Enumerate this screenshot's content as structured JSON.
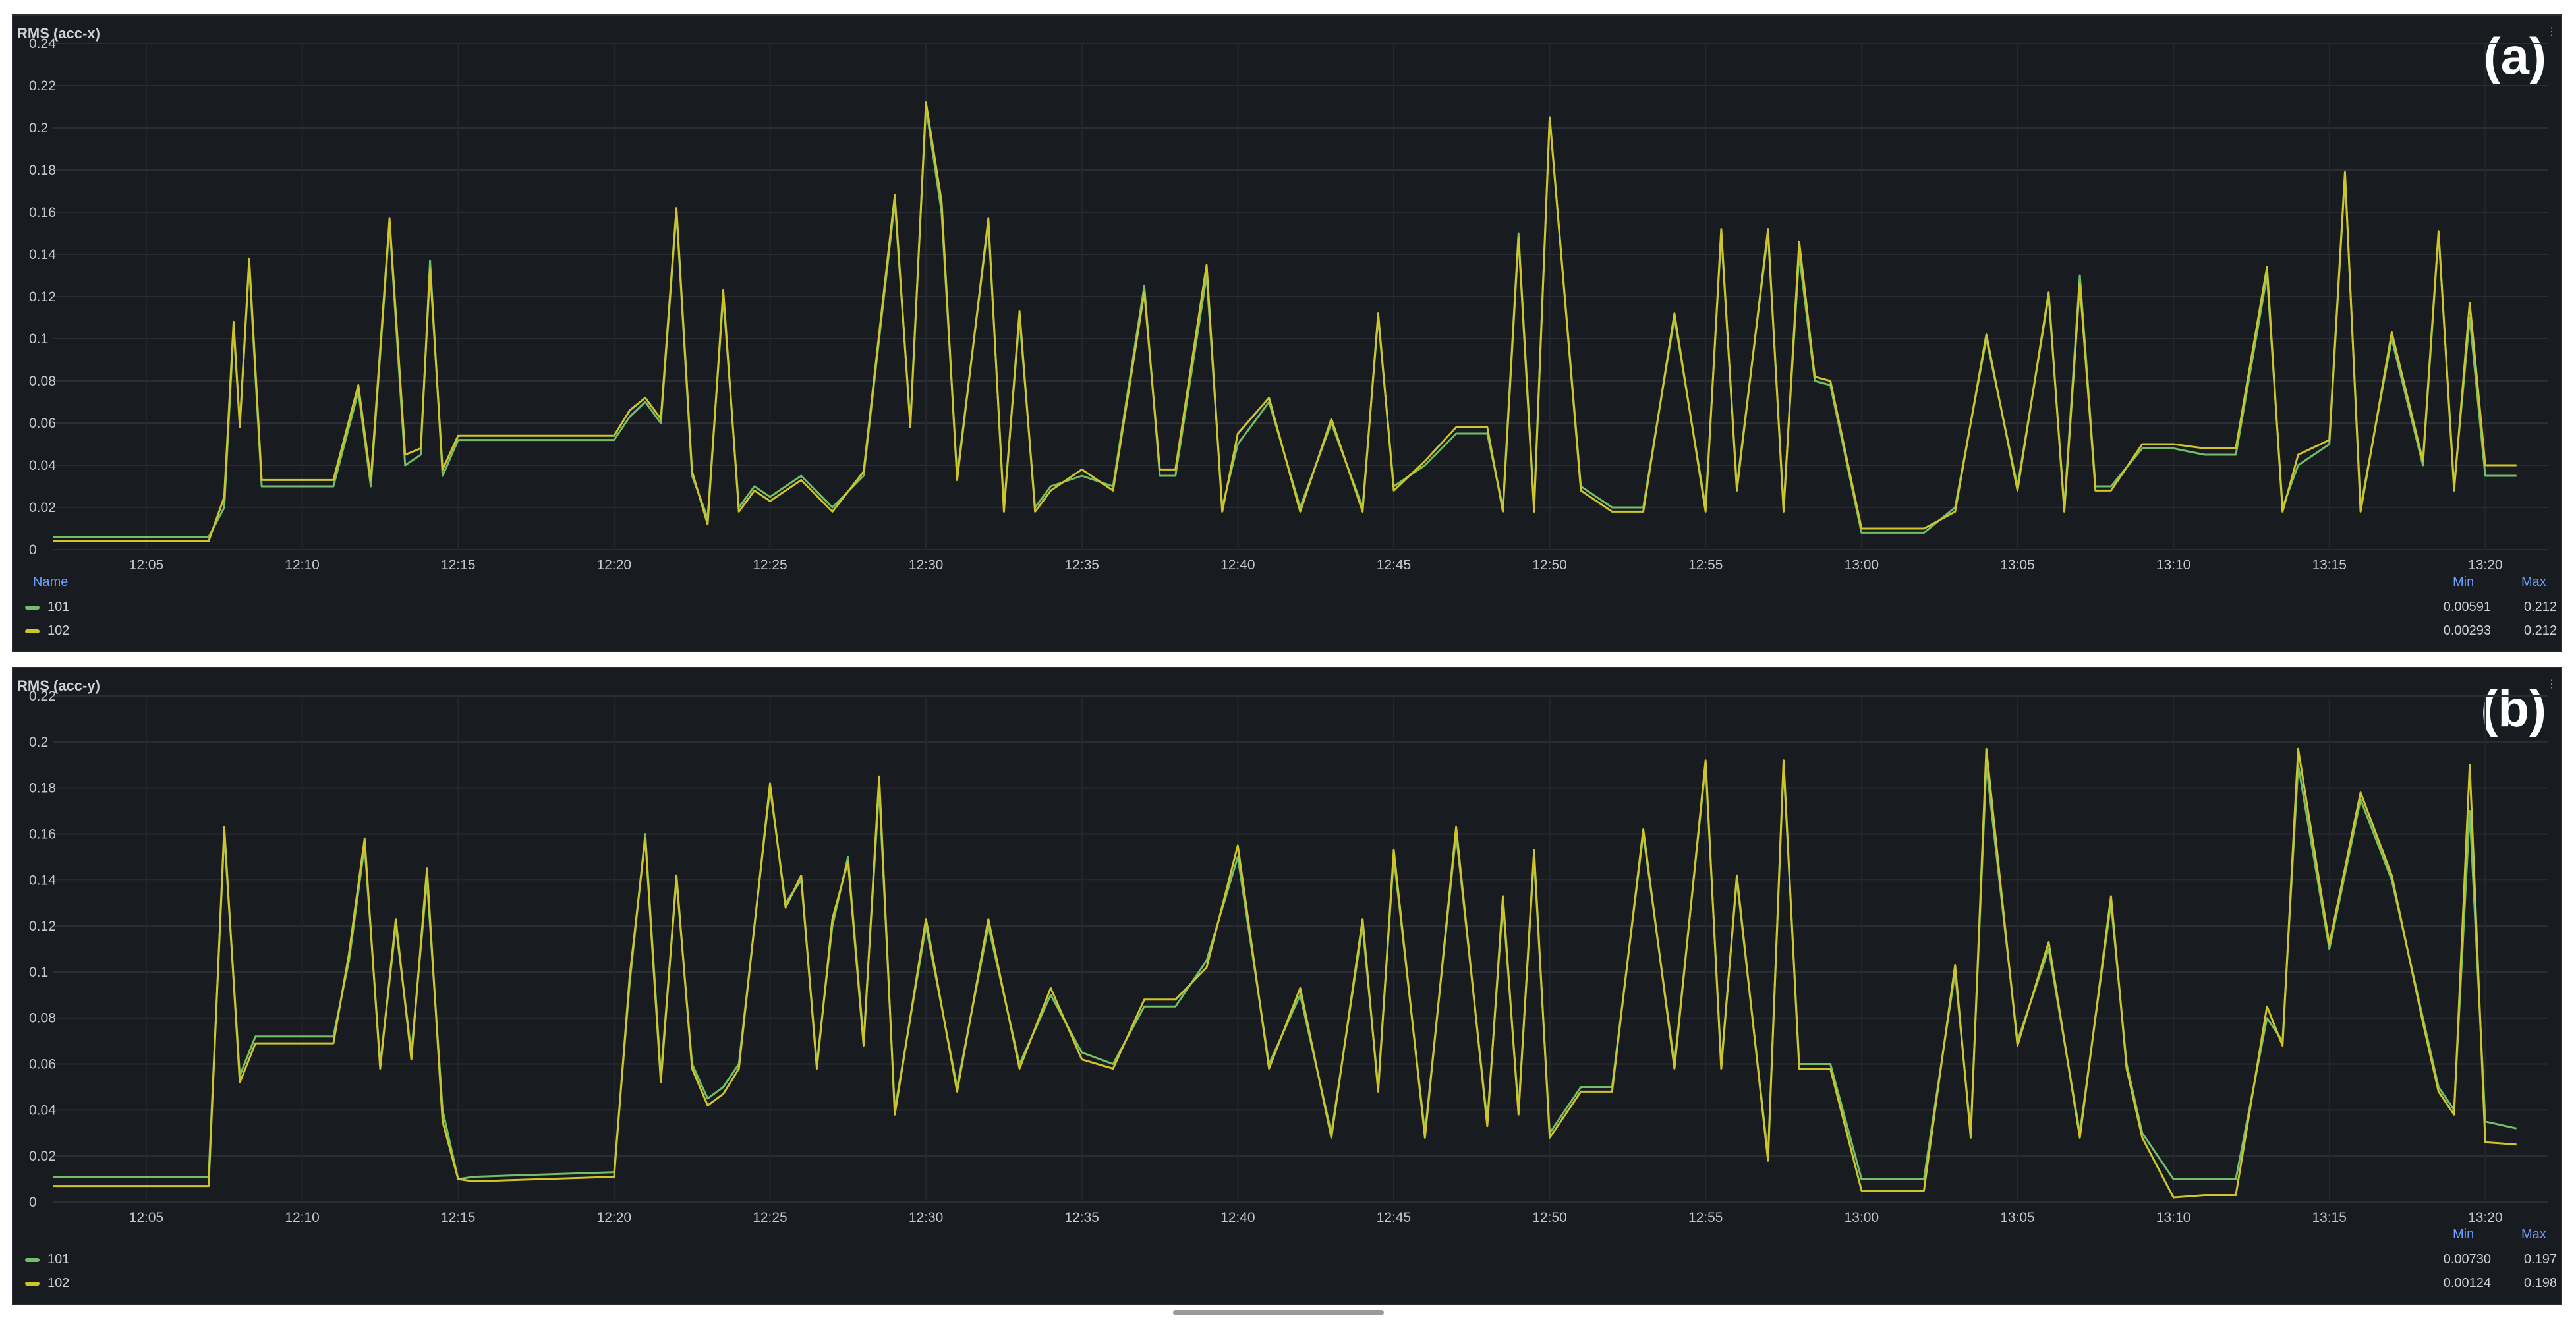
{
  "colors": {
    "s101": "#73bf69",
    "s102": "#cfc52a"
  },
  "x_ticks": [
    "12:05",
    "12:10",
    "12:15",
    "12:20",
    "12:25",
    "12:30",
    "12:35",
    "12:40",
    "12:45",
    "12:50",
    "12:55",
    "13:00",
    "13:05",
    "13:10",
    "13:15",
    "13:20"
  ],
  "legend_labels": {
    "name": "Name",
    "min": "Min",
    "max": "Max"
  },
  "chart_data": [
    {
      "type": "line",
      "title": "RMS (acc-x)",
      "panel_tag": "(a)",
      "ylim": [
        0,
        0.24
      ],
      "y_ticks": [
        "0",
        "0.02",
        "0.04",
        "0.06",
        "0.08",
        "0.1",
        "0.12",
        "0.14",
        "0.16",
        "0.18",
        "0.2",
        "0.22",
        "0.24"
      ],
      "x": [
        "12:02",
        "12:07",
        "12:07.5",
        "12:07.8",
        "12:08",
        "12:08.3",
        "12:08.7",
        "12:10",
        "12:11",
        "12:11.8",
        "12:12.2",
        "12:12.8",
        "12:13.3",
        "12:13.8",
        "12:14.1",
        "12:14.5",
        "12:15",
        "12:20",
        "12:20.5",
        "12:21",
        "12:21.5",
        "12:22",
        "12:22.5",
        "12:23",
        "12:23.5",
        "12:24",
        "12:24.5",
        "12:25",
        "12:26",
        "12:27",
        "12:28",
        "12:29",
        "12:29.5",
        "12:30",
        "12:30.5",
        "12:31",
        "12:32",
        "12:32.5",
        "12:33",
        "12:33.5",
        "12:34",
        "12:35",
        "12:36",
        "12:37",
        "12:37.5",
        "12:38",
        "12:39",
        "12:39.5",
        "12:40",
        "12:41",
        "12:42",
        "12:43",
        "12:44",
        "12:44.5",
        "12:45",
        "12:46",
        "12:47",
        "12:48",
        "12:48.5",
        "12:49",
        "12:49.5",
        "12:50",
        "12:51",
        "12:52",
        "12:53",
        "12:54",
        "12:55",
        "12:55.5",
        "12:56",
        "12:57",
        "12:57.5",
        "12:58",
        "12:58.5",
        "12:59",
        "13:00",
        "13:01",
        "13:02",
        "13:03",
        "13:04",
        "13:05",
        "13:06",
        "13:06.5",
        "13:07",
        "13:07.5",
        "13:08",
        "13:09",
        "13:10",
        "13:11",
        "13:12",
        "13:13",
        "13:13.5",
        "13:14",
        "13:15",
        "13:15.5",
        "13:16",
        "13:17",
        "13:18",
        "13:18.5",
        "13:19",
        "13:19.5",
        "13:20",
        "13:21"
      ],
      "series": [
        {
          "name": "101",
          "min": "0.00591",
          "max": "0.212",
          "values": [
            0.006,
            0.006,
            0.02,
            0.105,
            0.06,
            0.135,
            0.03,
            0.03,
            0.03,
            0.075,
            0.03,
            0.155,
            0.04,
            0.045,
            0.137,
            0.035,
            0.052,
            0.052,
            0.063,
            0.07,
            0.06,
            0.16,
            0.035,
            0.015,
            0.12,
            0.02,
            0.03,
            0.025,
            0.035,
            0.02,
            0.035,
            0.165,
            0.06,
            0.21,
            0.16,
            0.035,
            0.155,
            0.02,
            0.11,
            0.02,
            0.03,
            0.035,
            0.03,
            0.125,
            0.035,
            0.035,
            0.13,
            0.02,
            0.05,
            0.07,
            0.02,
            0.06,
            0.02,
            0.11,
            0.03,
            0.04,
            0.055,
            0.055,
            0.02,
            0.15,
            0.02,
            0.205,
            0.03,
            0.02,
            0.02,
            0.11,
            0.02,
            0.15,
            0.03,
            0.15,
            0.02,
            0.14,
            0.08,
            0.078,
            0.008,
            0.008,
            0.008,
            0.02,
            0.1,
            0.03,
            0.12,
            0.02,
            0.13,
            0.03,
            0.03,
            0.048,
            0.048,
            0.045,
            0.045,
            0.13,
            0.02,
            0.04,
            0.05,
            0.178,
            0.02,
            0.1,
            0.04,
            0.15,
            0.03,
            0.11,
            0.035,
            0.035
          ]
        },
        {
          "name": "102",
          "min": "0.00293",
          "max": "0.212",
          "values": [
            0.004,
            0.004,
            0.025,
            0.108,
            0.058,
            0.138,
            0.033,
            0.033,
            0.033,
            0.078,
            0.033,
            0.157,
            0.045,
            0.048,
            0.133,
            0.038,
            0.054,
            0.054,
            0.066,
            0.072,
            0.062,
            0.162,
            0.037,
            0.012,
            0.123,
            0.018,
            0.028,
            0.023,
            0.033,
            0.018,
            0.037,
            0.168,
            0.058,
            0.212,
            0.165,
            0.033,
            0.157,
            0.018,
            0.113,
            0.018,
            0.028,
            0.038,
            0.028,
            0.122,
            0.038,
            0.038,
            0.135,
            0.018,
            0.055,
            0.072,
            0.018,
            0.062,
            0.018,
            0.112,
            0.028,
            0.042,
            0.058,
            0.058,
            0.018,
            0.148,
            0.018,
            0.205,
            0.028,
            0.018,
            0.018,
            0.112,
            0.018,
            0.152,
            0.028,
            0.152,
            0.018,
            0.146,
            0.082,
            0.08,
            0.01,
            0.01,
            0.01,
            0.018,
            0.102,
            0.028,
            0.122,
            0.018,
            0.126,
            0.028,
            0.028,
            0.05,
            0.05,
            0.048,
            0.048,
            0.134,
            0.018,
            0.045,
            0.052,
            0.179,
            0.018,
            0.103,
            0.042,
            0.151,
            0.028,
            0.117,
            0.04,
            0.04
          ]
        }
      ]
    },
    {
      "type": "line",
      "title": "RMS (acc-y)",
      "panel_tag": "(b)",
      "ylim": [
        0,
        0.22
      ],
      "y_ticks": [
        "0",
        "0.02",
        "0.04",
        "0.06",
        "0.08",
        "0.1",
        "0.12",
        "0.14",
        "0.16",
        "0.18",
        "0.2",
        "0.22"
      ],
      "x": [
        "12:02",
        "12:07",
        "12:07.5",
        "12:08",
        "12:08.5",
        "12:09",
        "12:11",
        "12:11.5",
        "12:12",
        "12:12.5",
        "12:13",
        "12:13.5",
        "12:14",
        "12:14.5",
        "12:15",
        "12:15.5",
        "12:20",
        "12:20.5",
        "12:21",
        "12:21.5",
        "12:22",
        "12:22.5",
        "12:23",
        "12:23.5",
        "12:24",
        "12:25",
        "12:25.5",
        "12:26",
        "12:26.5",
        "12:27",
        "12:27.5",
        "12:28",
        "12:28.5",
        "12:29",
        "12:30",
        "12:31",
        "12:32",
        "12:33",
        "12:34",
        "12:35",
        "12:36",
        "12:37",
        "12:38",
        "12:39",
        "12:40",
        "12:41",
        "12:42",
        "12:43",
        "12:44",
        "12:44.5",
        "12:45",
        "12:46",
        "12:47",
        "12:48",
        "12:48.5",
        "12:49",
        "12:49.5",
        "12:50",
        "12:51",
        "12:52",
        "12:53",
        "12:54",
        "12:55",
        "12:55.5",
        "12:56",
        "12:57",
        "12:57.5",
        "12:58",
        "12:59",
        "13:00",
        "13:01",
        "13:02",
        "13:03",
        "13:03.5",
        "13:04",
        "13:05",
        "13:06",
        "13:07",
        "13:08",
        "13:08.5",
        "13:09",
        "13:10",
        "13:11",
        "13:12",
        "13:13",
        "13:13.5",
        "13:14",
        "13:15",
        "13:16",
        "13:17",
        "13:18",
        "13:18.5",
        "13:19",
        "13:19.5",
        "13:20",
        "13:21"
      ],
      "series": [
        {
          "name": "101",
          "min": "0.00730",
          "max": "0.197",
          "values": [
            0.011,
            0.011,
            0.16,
            0.055,
            0.072,
            0.072,
            0.072,
            0.105,
            0.155,
            0.06,
            0.12,
            0.065,
            0.14,
            0.04,
            0.01,
            0.011,
            0.013,
            0.095,
            0.16,
            0.055,
            0.14,
            0.06,
            0.045,
            0.05,
            0.06,
            0.18,
            0.13,
            0.14,
            0.06,
            0.12,
            0.15,
            0.07,
            0.18,
            0.04,
            0.12,
            0.05,
            0.12,
            0.06,
            0.09,
            0.065,
            0.06,
            0.085,
            0.085,
            0.105,
            0.15,
            0.06,
            0.09,
            0.03,
            0.12,
            0.05,
            0.15,
            0.03,
            0.16,
            0.035,
            0.13,
            0.04,
            0.15,
            0.03,
            0.05,
            0.05,
            0.16,
            0.06,
            0.19,
            0.06,
            0.14,
            0.02,
            0.19,
            0.06,
            0.06,
            0.01,
            0.01,
            0.01,
            0.1,
            0.03,
            0.19,
            0.07,
            0.11,
            0.03,
            0.13,
            0.06,
            0.03,
            0.01,
            0.01,
            0.01,
            0.08,
            0.07,
            0.19,
            0.11,
            0.175,
            0.14,
            0.08,
            0.05,
            0.04,
            0.17,
            0.035,
            0.032
          ]
        },
        {
          "name": "102",
          "min": "0.00124",
          "max": "0.198",
          "values": [
            0.007,
            0.007,
            0.163,
            0.052,
            0.069,
            0.069,
            0.069,
            0.108,
            0.158,
            0.058,
            0.123,
            0.062,
            0.145,
            0.035,
            0.01,
            0.009,
            0.011,
            0.098,
            0.158,
            0.052,
            0.142,
            0.058,
            0.042,
            0.047,
            0.058,
            0.182,
            0.128,
            0.142,
            0.058,
            0.123,
            0.148,
            0.068,
            0.185,
            0.038,
            0.123,
            0.048,
            0.123,
            0.058,
            0.093,
            0.062,
            0.058,
            0.088,
            0.088,
            0.102,
            0.155,
            0.058,
            0.093,
            0.028,
            0.123,
            0.048,
            0.153,
            0.028,
            0.163,
            0.033,
            0.133,
            0.038,
            0.153,
            0.028,
            0.048,
            0.048,
            0.162,
            0.058,
            0.192,
            0.058,
            0.142,
            0.018,
            0.192,
            0.058,
            0.058,
            0.005,
            0.005,
            0.005,
            0.103,
            0.028,
            0.197,
            0.068,
            0.113,
            0.028,
            0.133,
            0.058,
            0.028,
            0.002,
            0.003,
            0.003,
            0.085,
            0.068,
            0.197,
            0.112,
            0.178,
            0.142,
            0.078,
            0.048,
            0.038,
            0.19,
            0.026,
            0.025
          ]
        }
      ]
    }
  ]
}
